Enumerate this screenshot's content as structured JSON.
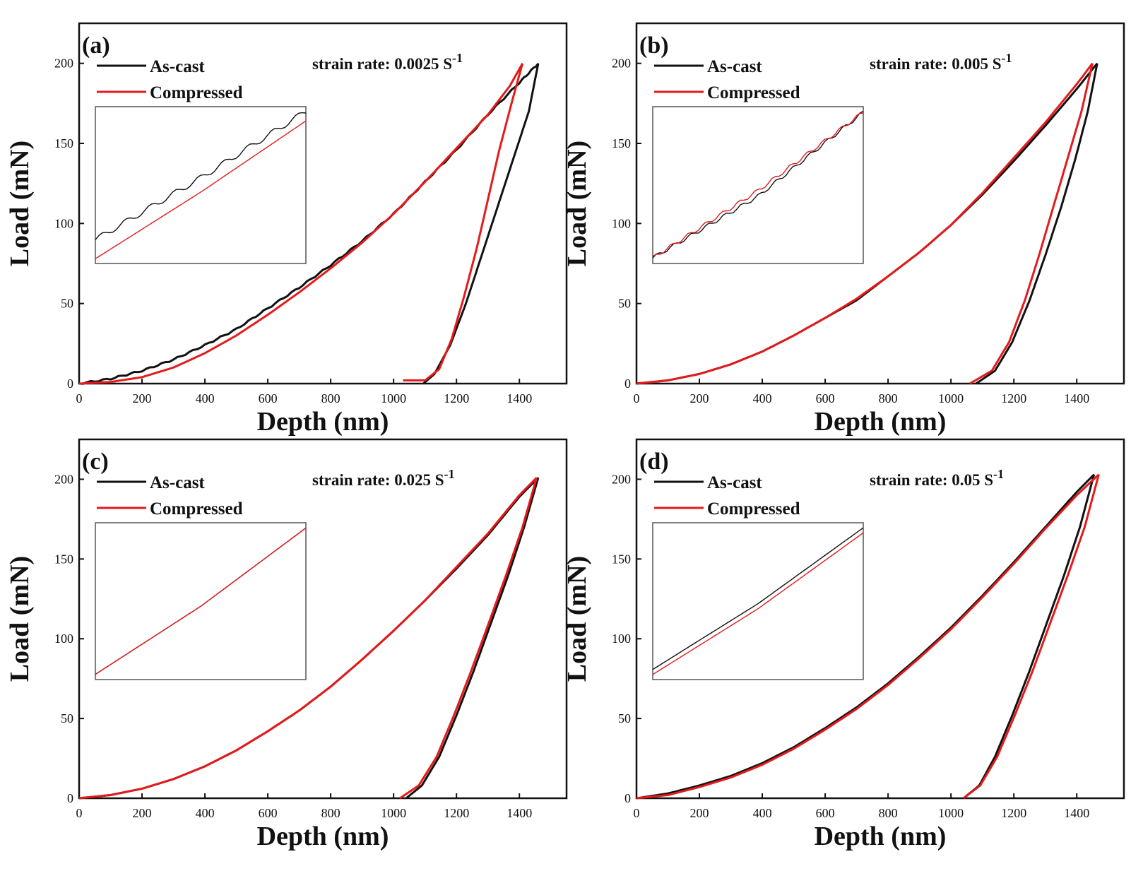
{
  "figure": {
    "xlabel": "Depth (nm)",
    "ylabel": "Load (mN)"
  },
  "colors": {
    "as_cast": "#111111",
    "compressed": "#e41a1c",
    "frame": "#111111",
    "inset_frame": "#555555"
  },
  "chart_data": [
    {
      "type": "line",
      "panel": "(a)",
      "title": "strain rate: 0.0025 S-1",
      "rate_base": "strain rate: 0.0025 S",
      "rate_exp": "-1",
      "xlabel": "Depth (nm)",
      "ylabel": "Load (mN)",
      "xlim": [
        0,
        1550
      ],
      "ylim": [
        0,
        225
      ],
      "xticks": [
        "0",
        "200",
        "400",
        "600",
        "800",
        "1000",
        "1200",
        "1400"
      ],
      "yticks": [
        "0",
        "50",
        "100",
        "150",
        "200"
      ],
      "legend": [
        "As-cast",
        "Compressed"
      ],
      "series": [
        {
          "name": "As-cast",
          "loading": [
            [
              0,
              0
            ],
            [
              100,
              3
            ],
            [
              200,
              8
            ],
            [
              300,
              15
            ],
            [
              400,
              24
            ],
            [
              500,
              34
            ],
            [
              600,
              47
            ],
            [
              700,
              60
            ],
            [
              800,
              74
            ],
            [
              900,
              89
            ],
            [
              1000,
              106
            ],
            [
              1100,
              126
            ],
            [
              1200,
              146
            ],
            [
              1300,
              168
            ],
            [
              1400,
              188
            ],
            [
              1460,
              200
            ]
          ],
          "unloading": [
            [
              1460,
              200
            ],
            [
              1430,
              170
            ],
            [
              1380,
              140
            ],
            [
              1330,
              110
            ],
            [
              1280,
              80
            ],
            [
              1230,
              50
            ],
            [
              1180,
              24
            ],
            [
              1130,
              6
            ],
            [
              1095,
              0
            ]
          ]
        },
        {
          "name": "Compressed",
          "loading": [
            [
              0,
              0
            ],
            [
              100,
              1
            ],
            [
              200,
              4
            ],
            [
              300,
              10
            ],
            [
              400,
              19
            ],
            [
              500,
              30
            ],
            [
              600,
              43
            ],
            [
              700,
              57
            ],
            [
              800,
              72
            ],
            [
              900,
              88
            ],
            [
              1000,
              106
            ],
            [
              1100,
              126
            ],
            [
              1200,
              147
            ],
            [
              1300,
              168
            ],
            [
              1370,
              186
            ],
            [
              1410,
              200
            ]
          ],
          "unloading": [
            [
              1410,
              200
            ],
            [
              1375,
              175
            ],
            [
              1335,
              145
            ],
            [
              1300,
              115
            ],
            [
              1265,
              85
            ],
            [
              1225,
              55
            ],
            [
              1185,
              28
            ],
            [
              1145,
              9
            ],
            [
              1100,
              2
            ],
            [
              1030,
              2
            ]
          ]
        }
      ]
    },
    {
      "type": "line",
      "panel": "(b)",
      "title": "strain rate: 0.005 S-1",
      "rate_base": "strain rate: 0.005 S",
      "rate_exp": "-1",
      "xlabel": "Depth (nm)",
      "ylabel": "Load (mN)",
      "xlim": [
        0,
        1550
      ],
      "ylim": [
        0,
        225
      ],
      "xticks": [
        "0",
        "200",
        "400",
        "600",
        "800",
        "1000",
        "1200",
        "1400"
      ],
      "yticks": [
        "0",
        "50",
        "100",
        "150",
        "200"
      ],
      "legend": [
        "As-cast",
        "Compressed"
      ],
      "series": [
        {
          "name": "As-cast",
          "loading": [
            [
              0,
              0
            ],
            [
              100,
              2
            ],
            [
              200,
              6
            ],
            [
              300,
              12
            ],
            [
              400,
              20
            ],
            [
              500,
              30
            ],
            [
              600,
              41
            ],
            [
              700,
              52
            ],
            [
              800,
              67
            ],
            [
              900,
              82
            ],
            [
              1000,
              99
            ],
            [
              1100,
              118
            ],
            [
              1200,
              139
            ],
            [
              1300,
              161
            ],
            [
              1400,
              184
            ],
            [
              1465,
              200
            ]
          ],
          "unloading": [
            [
              1465,
              200
            ],
            [
              1435,
              170
            ],
            [
              1395,
              140
            ],
            [
              1350,
              110
            ],
            [
              1300,
              80
            ],
            [
              1250,
              52
            ],
            [
              1195,
              26
            ],
            [
              1140,
              8
            ],
            [
              1080,
              0
            ]
          ]
        },
        {
          "name": "Compressed",
          "loading": [
            [
              0,
              0
            ],
            [
              100,
              2
            ],
            [
              200,
              6
            ],
            [
              300,
              12
            ],
            [
              400,
              20
            ],
            [
              500,
              30
            ],
            [
              600,
              41
            ],
            [
              700,
              53
            ],
            [
              800,
              67
            ],
            [
              900,
              82
            ],
            [
              1000,
              99
            ],
            [
              1100,
              119
            ],
            [
              1200,
              141
            ],
            [
              1300,
              163
            ],
            [
              1400,
              187
            ],
            [
              1450,
              200
            ]
          ],
          "unloading": [
            [
              1450,
              200
            ],
            [
              1415,
              170
            ],
            [
              1370,
              140
            ],
            [
              1325,
              110
            ],
            [
              1280,
              80
            ],
            [
              1235,
              52
            ],
            [
              1185,
              26
            ],
            [
              1130,
              8
            ],
            [
              1060,
              0
            ]
          ]
        }
      ]
    },
    {
      "type": "line",
      "panel": "(c)",
      "title": "strain rate: 0.025 S-1",
      "rate_base": "strain rate: 0.025 S",
      "rate_exp": "-1",
      "xlabel": "Depth (nm)",
      "ylabel": "Load (mN)",
      "xlim": [
        0,
        1550
      ],
      "ylim": [
        0,
        225
      ],
      "xticks": [
        "0",
        "200",
        "400",
        "600",
        "800",
        "1000",
        "1200",
        "1400"
      ],
      "yticks": [
        "0",
        "50",
        "100",
        "150",
        "200"
      ],
      "legend": [
        "As-cast",
        "Compressed"
      ],
      "series": [
        {
          "name": "As-cast",
          "loading": [
            [
              0,
              0
            ],
            [
              100,
              2
            ],
            [
              200,
              6
            ],
            [
              300,
              12
            ],
            [
              400,
              20
            ],
            [
              500,
              30
            ],
            [
              600,
              42
            ],
            [
              700,
              55
            ],
            [
              800,
              70
            ],
            [
              900,
              87
            ],
            [
              1000,
              105
            ],
            [
              1100,
              124
            ],
            [
              1200,
              144
            ],
            [
              1300,
              165
            ],
            [
              1400,
              189
            ],
            [
              1460,
              201
            ]
          ],
          "unloading": [
            [
              1460,
              201
            ],
            [
              1415,
              170
            ],
            [
              1365,
              140
            ],
            [
              1310,
              110
            ],
            [
              1255,
              80
            ],
            [
              1200,
              52
            ],
            [
              1145,
              26
            ],
            [
              1090,
              8
            ],
            [
              1040,
              0
            ]
          ]
        },
        {
          "name": "Compressed",
          "loading": [
            [
              0,
              0
            ],
            [
              100,
              2
            ],
            [
              200,
              6
            ],
            [
              300,
              12
            ],
            [
              400,
              20
            ],
            [
              500,
              30
            ],
            [
              600,
              42
            ],
            [
              700,
              55
            ],
            [
              800,
              70
            ],
            [
              900,
              87
            ],
            [
              1000,
              105
            ],
            [
              1100,
              124
            ],
            [
              1200,
              145
            ],
            [
              1300,
              166
            ],
            [
              1400,
              190
            ],
            [
              1455,
              201
            ]
          ],
          "unloading": [
            [
              1455,
              201
            ],
            [
              1410,
              170
            ],
            [
              1358,
              140
            ],
            [
              1303,
              110
            ],
            [
              1247,
              80
            ],
            [
              1192,
              52
            ],
            [
              1137,
              26
            ],
            [
              1080,
              8
            ],
            [
              1020,
              0
            ]
          ]
        }
      ]
    },
    {
      "type": "line",
      "panel": "(d)",
      "title": "strain rate: 0.05 S-1",
      "rate_base": "strain rate: 0.05 S",
      "rate_exp": "-1",
      "xlabel": "Depth (nm)",
      "ylabel": "Load (mN)",
      "xlim": [
        0,
        1550
      ],
      "ylim": [
        0,
        225
      ],
      "xticks": [
        "0",
        "200",
        "400",
        "600",
        "800",
        "1000",
        "1200",
        "1400"
      ],
      "yticks": [
        "0",
        "50",
        "100",
        "150",
        "200"
      ],
      "legend": [
        "As-cast",
        "Compressed"
      ],
      "series": [
        {
          "name": "As-cast",
          "loading": [
            [
              0,
              0
            ],
            [
              100,
              3
            ],
            [
              200,
              8
            ],
            [
              300,
              14
            ],
            [
              400,
              22
            ],
            [
              500,
              32
            ],
            [
              600,
              44
            ],
            [
              700,
              57
            ],
            [
              800,
              72
            ],
            [
              900,
              89
            ],
            [
              1000,
              107
            ],
            [
              1100,
              127
            ],
            [
              1200,
              148
            ],
            [
              1300,
              170
            ],
            [
              1400,
              192
            ],
            [
              1455,
              203
            ]
          ],
          "unloading": [
            [
              1455,
              203
            ],
            [
              1410,
              170
            ],
            [
              1360,
              140
            ],
            [
              1305,
              110
            ],
            [
              1250,
              80
            ],
            [
              1195,
              52
            ],
            [
              1140,
              26
            ],
            [
              1090,
              8
            ],
            [
              1040,
              0
            ]
          ]
        },
        {
          "name": "Compressed",
          "loading": [
            [
              0,
              0
            ],
            [
              100,
              2
            ],
            [
              200,
              7
            ],
            [
              300,
              13
            ],
            [
              400,
              21
            ],
            [
              500,
              31
            ],
            [
              600,
              43
            ],
            [
              700,
              56
            ],
            [
              800,
              71
            ],
            [
              900,
              88
            ],
            [
              1000,
              106
            ],
            [
              1100,
              126
            ],
            [
              1200,
              147
            ],
            [
              1300,
              169
            ],
            [
              1400,
              190
            ],
            [
              1470,
              203
            ]
          ],
          "unloading": [
            [
              1470,
              203
            ],
            [
              1425,
              170
            ],
            [
              1372,
              140
            ],
            [
              1316,
              110
            ],
            [
              1260,
              80
            ],
            [
              1203,
              52
            ],
            [
              1147,
              26
            ],
            [
              1093,
              8
            ],
            [
              1040,
              0
            ]
          ]
        }
      ]
    }
  ]
}
